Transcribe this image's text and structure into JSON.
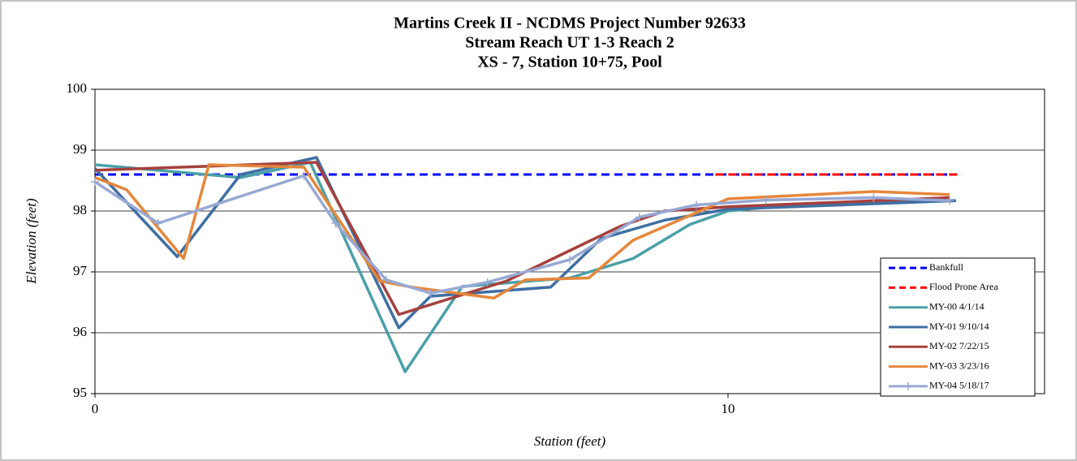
{
  "chart_data": {
    "type": "line",
    "title": [
      "Martins Creek II - NCDMS Project Number 92633",
      "Stream Reach UT 1-3 Reach 2",
      "XS - 7, Station 10+75, Pool"
    ],
    "xlabel": "Station (feet)",
    "ylabel": "Elevation (feet)",
    "xlim": [
      0,
      15
    ],
    "xticks": [
      0,
      10
    ],
    "ylim": [
      95,
      100
    ],
    "yticks": [
      95,
      96,
      97,
      98,
      99,
      100
    ],
    "grid": true,
    "legend": "lower right",
    "series": [
      {
        "name": "Bankfull",
        "color": "#0000ff",
        "dash": true,
        "x": [
          0,
          13.6
        ],
        "values": [
          98.6,
          98.6
        ]
      },
      {
        "name": "Flood Prone Area",
        "color": "#ff0000",
        "dash": true,
        "x": [
          9.8,
          13.7
        ],
        "values": [
          98.6,
          98.6
        ]
      },
      {
        "name": "MY-00 4/1/14",
        "color": "#4aa0a8",
        "x": [
          0,
          2.3,
          3.4,
          4.9,
          5.8,
          7.5,
          8.5,
          9.4,
          10,
          11,
          13.6
        ],
        "values": [
          98.76,
          98.55,
          98.8,
          95.36,
          96.76,
          96.9,
          97.22,
          97.78,
          98.0,
          98.1,
          98.17
        ]
      },
      {
        "name": "MY-01 9/10/14",
        "color": "#3e6fa3",
        "x": [
          0,
          1.3,
          2.3,
          3.5,
          4.8,
          5.3,
          7.2,
          8.0,
          9.0,
          10,
          13.6
        ],
        "values": [
          98.7,
          97.25,
          98.6,
          98.88,
          96.08,
          96.6,
          96.75,
          97.55,
          97.85,
          98.03,
          98.17
        ]
      },
      {
        "name": "MY-02 7/22/15",
        "color": "#a5403d",
        "x": [
          0,
          3.5,
          4.8,
          6.5,
          7.5,
          8.3,
          9.0,
          10,
          13.5
        ],
        "values": [
          98.67,
          98.8,
          96.3,
          96.85,
          97.35,
          97.75,
          98.0,
          98.07,
          98.22
        ]
      },
      {
        "name": "MY-03 3/23/16",
        "color": "#e5873b",
        "x": [
          0,
          0.5,
          1.4,
          1.8,
          3.3,
          4.5,
          5.0,
          6.3,
          6.8,
          7.8,
          8.5,
          10,
          12.3,
          13.5
        ],
        "values": [
          98.55,
          98.35,
          97.22,
          98.76,
          98.72,
          96.85,
          96.75,
          96.57,
          96.87,
          96.9,
          97.52,
          98.2,
          98.32,
          98.27
        ]
      },
      {
        "name": "MY-04 5/18/17",
        "color": "#98a9d4",
        "marker": "plus",
        "x": [
          0,
          1.0,
          3.3,
          3.8,
          4.6,
          5.3,
          6.2,
          7.5,
          8.6,
          9.5,
          10.6,
          12.3,
          13.5
        ],
        "values": [
          98.48,
          97.8,
          98.58,
          97.8,
          96.87,
          96.65,
          96.83,
          97.2,
          97.9,
          98.1,
          98.18,
          98.22,
          98.17
        ]
      }
    ]
  }
}
